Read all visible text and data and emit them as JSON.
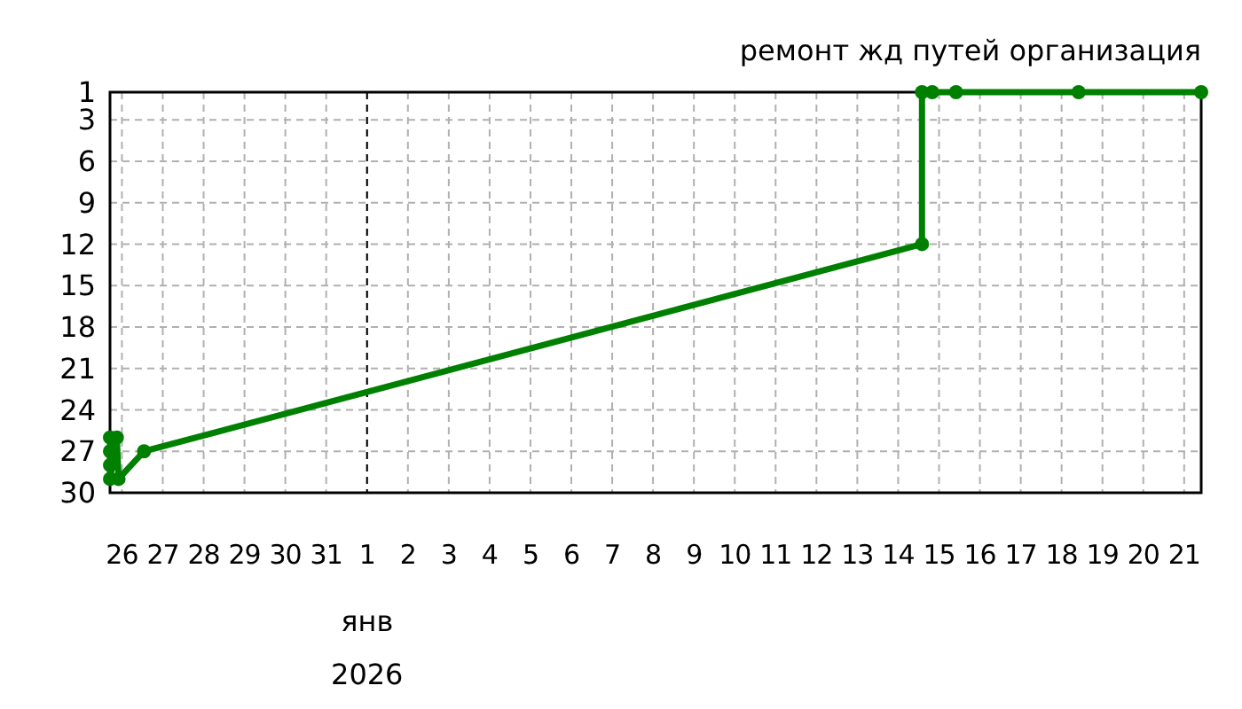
{
  "chart_data": {
    "type": "line",
    "title": "ремонт жд путей организация",
    "xlabel": "янв 2026",
    "x": [
      "2025-12-25T17:00",
      "2025-12-25T17:00",
      "2025-12-25T17:00",
      "2025-12-25T17:00",
      "2025-12-25T21:00",
      "2025-12-25T22:00",
      "2025-12-26T13:00",
      "2026-01-14T14:00",
      "2026-01-14T14:00",
      "2026-01-14T20:00",
      "2026-01-15T10:00",
      "2026-01-18T10:00",
      "2026-01-21T10:00"
    ],
    "series": [
      {
        "color": "#008000",
        "values": [
          26,
          27,
          28,
          29,
          26,
          29,
          27,
          12,
          1,
          1,
          1,
          1,
          1
        ]
      }
    ],
    "xlim": [
      "2025-12-25T17:00",
      "2026-01-21T10:00"
    ],
    "xticks": [
      {
        "value": "2025-12-26",
        "label": "26"
      },
      {
        "value": "2025-12-27",
        "label": "27"
      },
      {
        "value": "2025-12-28",
        "label": "28"
      },
      {
        "value": "2025-12-29",
        "label": "29"
      },
      {
        "value": "2025-12-30",
        "label": "30"
      },
      {
        "value": "2025-12-31",
        "label": "31"
      },
      {
        "value": "2026-01-01",
        "label": "1"
      },
      {
        "value": "2026-01-02",
        "label": "2"
      },
      {
        "value": "2026-01-03",
        "label": "3"
      },
      {
        "value": "2026-01-04",
        "label": "4"
      },
      {
        "value": "2026-01-05",
        "label": "5"
      },
      {
        "value": "2026-01-06",
        "label": "6"
      },
      {
        "value": "2026-01-07",
        "label": "7"
      },
      {
        "value": "2026-01-08",
        "label": "8"
      },
      {
        "value": "2026-01-09",
        "label": "9"
      },
      {
        "value": "2026-01-10",
        "label": "10"
      },
      {
        "value": "2026-01-11",
        "label": "11"
      },
      {
        "value": "2026-01-12",
        "label": "12"
      },
      {
        "value": "2026-01-13",
        "label": "13"
      },
      {
        "value": "2026-01-14",
        "label": "14"
      },
      {
        "value": "2026-01-15",
        "label": "15"
      },
      {
        "value": "2026-01-16",
        "label": "16"
      },
      {
        "value": "2026-01-17",
        "label": "17"
      },
      {
        "value": "2026-01-18",
        "label": "18"
      },
      {
        "value": "2026-01-19",
        "label": "19"
      },
      {
        "value": "2026-01-20",
        "label": "20"
      },
      {
        "value": "2026-01-21",
        "label": "21"
      }
    ],
    "ylim": [
      30,
      1
    ],
    "yticks": [
      1,
      3,
      6,
      9,
      12,
      15,
      18,
      21,
      24,
      27,
      30
    ],
    "ref_lines": [
      {
        "axis": "x",
        "value": "2026-01-01",
        "color": "#000000",
        "line_style": "dashed"
      }
    ],
    "grid": true,
    "marker": "circle",
    "line_style": "solid"
  }
}
